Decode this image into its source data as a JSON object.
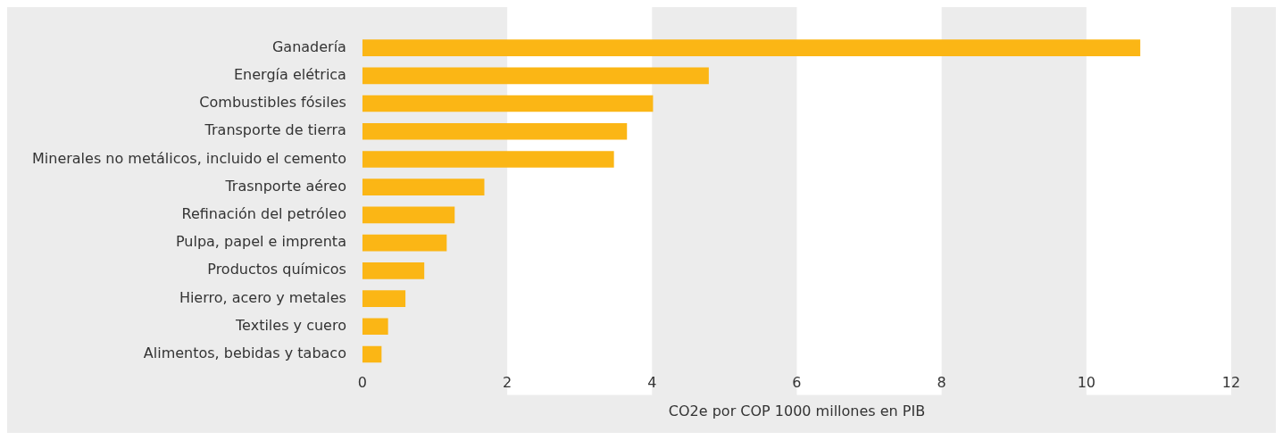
{
  "chart_data": {
    "type": "bar",
    "orientation": "horizontal",
    "xlabel": "CO2e por COP 1000 millones en PIB",
    "categories": [
      "Ganadería",
      "Energía elétrica",
      "Combustibles fósiles",
      "Transporte de tierra",
      "Minerales no metálicos, incluido el cemento",
      "Trasnporte aéreo",
      "Refinación del petróleo",
      "Pulpa, papel e imprenta",
      "Productos químicos",
      "Hierro, acero y metales",
      "Textiles y cuero",
      "Alimentos, bebidas y tabaco"
    ],
    "values": [
      10.74,
      4.78,
      4.01,
      3.65,
      3.47,
      1.68,
      1.27,
      1.16,
      0.85,
      0.59,
      0.35,
      0.26
    ],
    "color": "#fbb615",
    "xlim": [
      0,
      12
    ],
    "xticks": [
      0,
      2,
      4,
      6,
      8,
      10,
      12
    ],
    "bands": [
      {
        "axis": "x",
        "from": 2,
        "to": 4,
        "color": "#ffffff"
      },
      {
        "axis": "x",
        "from": 6,
        "to": 8,
        "color": "#ffffff"
      },
      {
        "axis": "x",
        "from": 10,
        "to": 12,
        "color": "#ffffff"
      }
    ],
    "grid": false,
    "legend": false
  }
}
